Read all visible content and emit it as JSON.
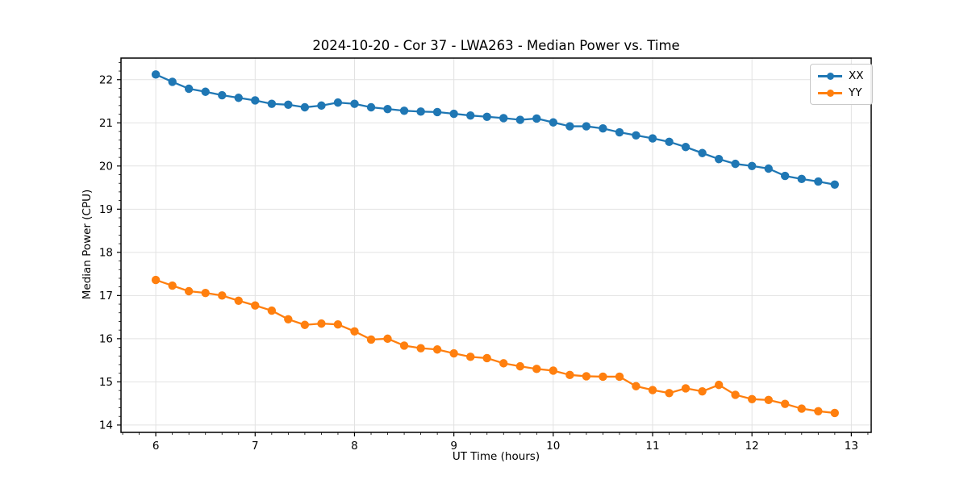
{
  "figure": {
    "title": "2024-10-20 - Cor 37 - LWA263 - Median Power vs. Time",
    "xlabel": "UT Time (hours)",
    "ylabel": "Median Power (CPU)"
  },
  "chart_data": {
    "type": "line",
    "title": "2024-10-20 - Cor 37 - LWA263 - Median Power vs. Time",
    "xlabel": "UT Time (hours)",
    "ylabel": "Median Power (CPU)",
    "xlim": [
      5.65,
      13.2
    ],
    "ylim": [
      13.83,
      22.5
    ],
    "x_ticks": [
      6,
      7,
      8,
      9,
      10,
      11,
      12,
      13
    ],
    "y_ticks": [
      14,
      15,
      16,
      17,
      18,
      19,
      20,
      21,
      22
    ],
    "x_minor_step": 0.16667,
    "y_minor_step": 0.2,
    "grid": true,
    "legend_position": "upper right",
    "marker": "o",
    "x": [
      6.0,
      6.167,
      6.333,
      6.5,
      6.667,
      6.833,
      7.0,
      7.167,
      7.333,
      7.5,
      7.667,
      7.833,
      8.0,
      8.167,
      8.333,
      8.5,
      8.667,
      8.833,
      9.0,
      9.167,
      9.333,
      9.5,
      9.667,
      9.833,
      10.0,
      10.167,
      10.333,
      10.5,
      10.667,
      10.833,
      11.0,
      11.167,
      11.333,
      11.5,
      11.667,
      11.833,
      12.0,
      12.167,
      12.333,
      12.5,
      12.667,
      12.833
    ],
    "series": [
      {
        "name": "XX",
        "color": "#1f77b4",
        "values": [
          22.12,
          21.95,
          21.79,
          21.72,
          21.64,
          21.58,
          21.52,
          21.44,
          21.42,
          21.36,
          21.4,
          21.47,
          21.44,
          21.36,
          21.32,
          21.28,
          21.26,
          21.25,
          21.21,
          21.17,
          21.14,
          21.11,
          21.07,
          21.1,
          21.01,
          20.92,
          20.92,
          20.87,
          20.78,
          20.71,
          20.64,
          20.56,
          20.44,
          20.3,
          20.16,
          20.05,
          20.0,
          19.94,
          19.77,
          19.7,
          19.64,
          19.57
        ]
      },
      {
        "name": "YY",
        "color": "#ff7f0e",
        "values": [
          17.36,
          17.23,
          17.1,
          17.06,
          17.0,
          16.88,
          16.77,
          16.65,
          16.45,
          16.32,
          16.35,
          16.33,
          16.17,
          15.98,
          16.0,
          15.84,
          15.78,
          15.75,
          15.66,
          15.58,
          15.55,
          15.43,
          15.36,
          15.3,
          15.26,
          15.16,
          15.13,
          15.12,
          15.12,
          14.9,
          14.81,
          14.74,
          14.85,
          14.78,
          14.93,
          14.7,
          14.6,
          14.58,
          14.49,
          14.38,
          14.32,
          14.28
        ]
      }
    ],
    "style": {
      "grid_color": "#e2e2e2",
      "spine_color": "#000000",
      "tick_label_color": "#000000"
    }
  }
}
